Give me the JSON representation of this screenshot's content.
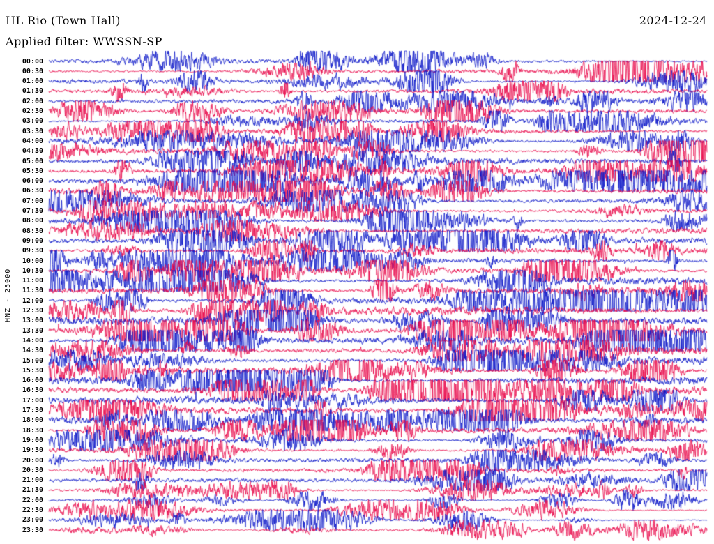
{
  "header": {
    "station": "HL Rio (Town Hall)",
    "date": "2024-12-24",
    "filter": "Applied filter: WWSSN-SP"
  },
  "axis": {
    "left_label": "HNZ - 25000"
  },
  "chart_data": {
    "type": "line",
    "subtype": "helicorder-seismogram",
    "title": "HL Rio (Town Hall)",
    "date": "2024-12-24",
    "filter": "WWSSN-SP",
    "xlabel": "",
    "ylabel": "HNZ - 25000",
    "minutes_per_row": 30,
    "grid": false,
    "legend": false,
    "amplitude_units": "relative (visual estimate per 30-min trace row)",
    "categories": [
      "00:00",
      "00:30",
      "01:00",
      "01:30",
      "02:00",
      "02:30",
      "03:00",
      "03:30",
      "04:00",
      "04:30",
      "05:00",
      "05:30",
      "06:00",
      "06:30",
      "07:00",
      "07:30",
      "08:00",
      "08:30",
      "09:00",
      "09:30",
      "10:00",
      "10:30",
      "11:00",
      "11:30",
      "12:00",
      "12:30",
      "13:00",
      "13:30",
      "14:00",
      "14:30",
      "15:00",
      "15:30",
      "16:00",
      "16:30",
      "17:00",
      "17:30",
      "18:00",
      "18:30",
      "19:00",
      "19:30",
      "20:00",
      "20:30",
      "21:00",
      "21:30",
      "22:00",
      "22:30",
      "23:00",
      "23:30"
    ],
    "row_amplitudes": [
      0.45,
      0.5,
      0.5,
      0.55,
      0.5,
      0.45,
      0.5,
      0.6,
      0.65,
      0.65,
      0.7,
      0.75,
      0.75,
      0.7,
      0.65,
      0.6,
      0.65,
      0.7,
      0.7,
      0.7,
      0.75,
      0.8,
      0.8,
      0.75,
      0.8,
      0.9,
      0.9,
      0.85,
      0.8,
      0.8,
      0.8,
      0.8,
      0.85,
      0.85,
      0.8,
      0.75,
      0.7,
      0.6,
      0.6,
      0.55,
      0.5,
      0.5,
      0.45,
      0.3,
      0.35,
      0.3,
      0.3,
      0.28
    ],
    "colors": {
      "even": "#0b16c8",
      "odd": "#e8094a"
    },
    "text_color": "#000000",
    "background": "#ffffff"
  }
}
